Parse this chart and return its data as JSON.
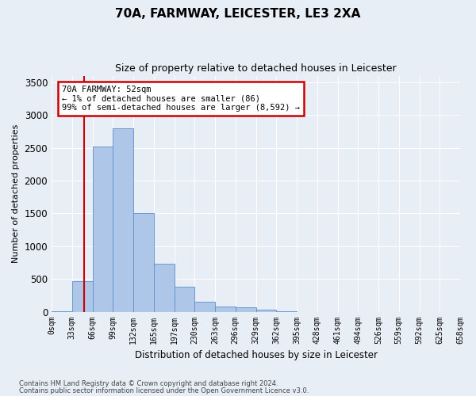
{
  "title": "70A, FARMWAY, LEICESTER, LE3 2XA",
  "subtitle": "Size of property relative to detached houses in Leicester",
  "xlabel": "Distribution of detached houses by size in Leicester",
  "ylabel": "Number of detached properties",
  "bin_labels": [
    "0sqm",
    "33sqm",
    "66sqm",
    "99sqm",
    "132sqm",
    "165sqm",
    "197sqm",
    "230sqm",
    "263sqm",
    "296sqm",
    "329sqm",
    "362sqm",
    "395sqm",
    "428sqm",
    "461sqm",
    "494sqm",
    "526sqm",
    "559sqm",
    "592sqm",
    "625sqm",
    "658sqm"
  ],
  "bar_values": [
    5,
    460,
    2520,
    2800,
    1510,
    730,
    380,
    155,
    75,
    65,
    35,
    5,
    0,
    0,
    0,
    0,
    0,
    0,
    0,
    0
  ],
  "bar_color": "#aec6e8",
  "bar_edge_color": "#5b8fc9",
  "property_line_x": 52,
  "annotation_title": "70A FARMWAY: 52sqm",
  "annotation_line1": "← 1% of detached houses are smaller (86)",
  "annotation_line2": "99% of semi-detached houses are larger (8,592) →",
  "annotation_box_color": "#ffffff",
  "annotation_box_edge": "#cc0000",
  "vline_color": "#cc0000",
  "ylim": [
    0,
    3600
  ],
  "yticks": [
    0,
    500,
    1000,
    1500,
    2000,
    2500,
    3000,
    3500
  ],
  "footer_line1": "Contains HM Land Registry data © Crown copyright and database right 2024.",
  "footer_line2": "Contains public sector information licensed under the Open Government Licence v3.0.",
  "background_color": "#e8eef6",
  "plot_bg_color": "#e8eef6",
  "bin_width": 33
}
